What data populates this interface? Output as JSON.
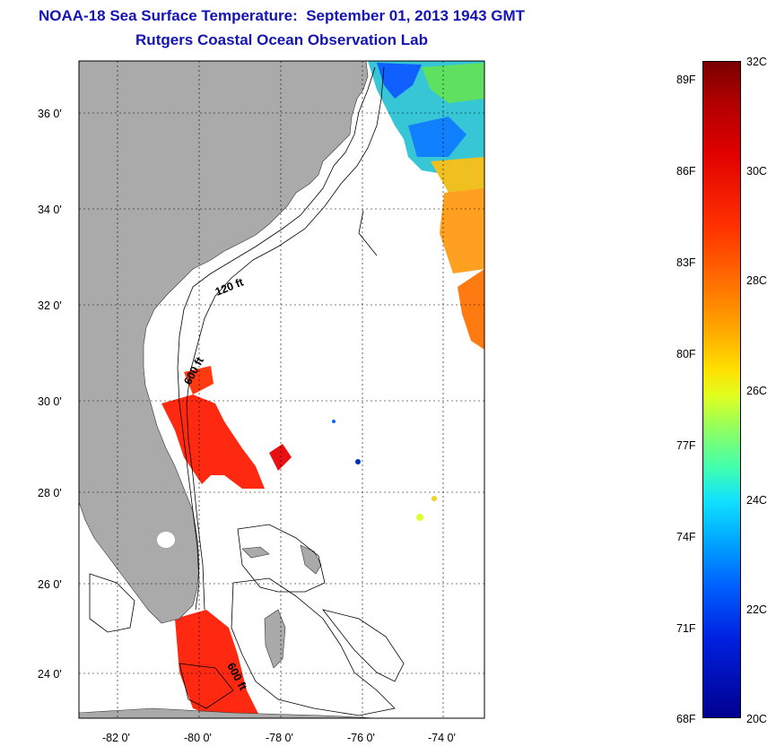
{
  "header": {
    "title": "NOAA-18 Sea Surface Temperature:  September 01, 2013 1943 GMT",
    "subtitle": "Rutgers Coastal Ocean Observation Lab"
  },
  "map": {
    "lat_labels": [
      "36 0'",
      "34 0'",
      "32 0'",
      "30 0'",
      "28 0'",
      "26 0'",
      "24 0'"
    ],
    "lon_labels": [
      "-82 0'",
      "-80 0'",
      "-78 0'",
      "-76 0'",
      "-74 0'"
    ],
    "contour_labels": [
      "120 ft",
      "600 ft",
      "600 ft"
    ],
    "colors": {
      "land": "#aaaaaa",
      "ocean_no_data": "#ffffff",
      "grid": "#000000"
    }
  },
  "colorbar": {
    "celsius_labels": [
      "32C",
      "30C",
      "28C",
      "26C",
      "24C",
      "22C",
      "20C"
    ],
    "fahrenheit_labels": [
      "89F",
      "86F",
      "83F",
      "80F",
      "77F",
      "74F",
      "71F",
      "68F"
    ],
    "range_c": [
      20,
      32
    ],
    "range_f": [
      68,
      89.6
    ],
    "colors": {
      "warm": "#7a0000",
      "mid": "#ffe000",
      "cool": "#00008f"
    }
  }
}
